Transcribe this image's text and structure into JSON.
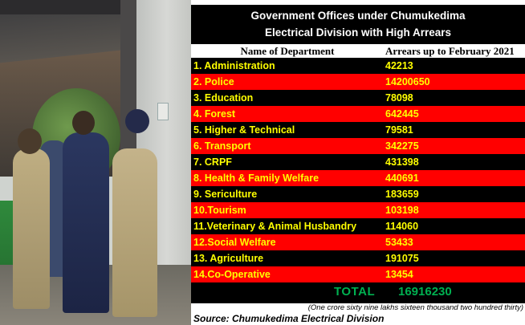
{
  "title_line1": "Government  Offices under Chumukedima",
  "title_line2": "Electrical Division with High Arrears",
  "headers": {
    "department": "Name of Department",
    "arrears": "Arrears up to February 2021"
  },
  "rows": [
    {
      "name": "1.  Administration",
      "value": "42213"
    },
    {
      "name": "2. Police",
      "value": "14200650"
    },
    {
      "name": "3.  Education",
      "value": "78098"
    },
    {
      "name": "4.  Forest",
      "value": "642445"
    },
    {
      "name": "5.  Higher & Technical",
      "value": "79581"
    },
    {
      "name": "6.  Transport",
      "value": "342275"
    },
    {
      "name": "7.  CRPF",
      "value": "431398"
    },
    {
      "name": "8.  Health & Family Welfare",
      "value": "440691"
    },
    {
      "name": "9.  Sericulture",
      "value": "183659"
    },
    {
      "name": "10.Tourism",
      "value": "103198"
    },
    {
      "name": "11.Veterinary & Animal Husbandry",
      "value": "114060"
    },
    {
      "name": "12.Social Welfare",
      "value": "53433"
    },
    {
      "name": "13. Agriculture",
      "value": "191075"
    },
    {
      "name": "14.Co-Operative",
      "value": "13454"
    }
  ],
  "total_label": "TOTAL",
  "total_value": "16916230",
  "total_words": "(One crore sixty nine lakhs sixteen thousand two hundred thirty)",
  "source": "Source: Chumukedima Electrical Division",
  "colors": {
    "panel_bg": "#000000",
    "row_alt": "#ff0000",
    "text_yellow": "#ffff00",
    "total_green": "#00b050"
  }
}
